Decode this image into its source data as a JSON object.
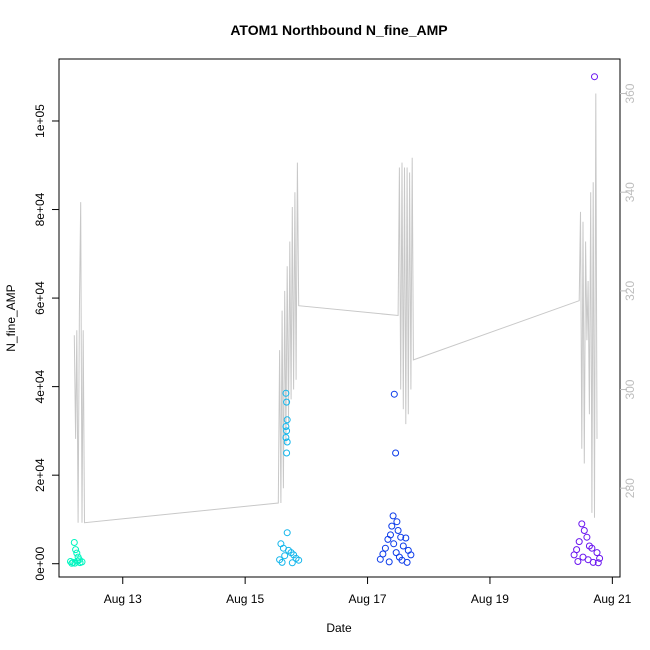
{
  "chart_data": {
    "type": "scatter",
    "title": "ATOM1 Northbound N_fine_AMP",
    "xlabel": "Date",
    "ylabel": "N_fine_AMP",
    "xlim": [
      "2023-08-11T23:00",
      "2023-08-21T03:00"
    ],
    "ylim": [
      -3000,
      114000
    ],
    "x_ticks": [
      {
        "value": "2023-08-13",
        "label": "Aug 13"
      },
      {
        "value": "2023-08-15",
        "label": "Aug 15"
      },
      {
        "value": "2023-08-17",
        "label": "Aug 17"
      },
      {
        "value": "2023-08-19",
        "label": "Aug 19"
      },
      {
        "value": "2023-08-21",
        "label": "Aug 21"
      }
    ],
    "y_ticks": [
      {
        "value": 0,
        "label": "0e+00"
      },
      {
        "value": 20000,
        "label": "2e+04"
      },
      {
        "value": 40000,
        "label": "4e+04"
      },
      {
        "value": 60000,
        "label": "6e+04"
      },
      {
        "value": 80000,
        "label": "8e+04"
      },
      {
        "value": 100000,
        "label": "1e+05"
      }
    ],
    "y2lim": [
      262,
      367
    ],
    "y2_ticks": [
      {
        "value": 280,
        "label": "280"
      },
      {
        "value": 300,
        "label": "300"
      },
      {
        "value": 320,
        "label": "320"
      },
      {
        "value": 340,
        "label": "340"
      },
      {
        "value": 360,
        "label": "360"
      }
    ],
    "colors": {
      "group1": "#00f5c0",
      "group2": "#13b6ec",
      "group3": "#0b3bea",
      "group4": "#6a14f0",
      "line": "#c8c8c8",
      "right_axis": "#bdbdbd"
    },
    "groups": [
      {
        "color_key": "group1",
        "points": [
          [
            "2023-08-12T05:00",
            4800
          ],
          [
            "2023-08-12T05:30",
            3200
          ],
          [
            "2023-08-12T06:00",
            2400
          ],
          [
            "2023-08-12T06:30",
            1500
          ],
          [
            "2023-08-12T07:00",
            900
          ],
          [
            "2023-08-12T04:30",
            300
          ],
          [
            "2023-08-12T05:15",
            150
          ],
          [
            "2023-08-12T06:15",
            600
          ],
          [
            "2023-08-12T07:15",
            250
          ],
          [
            "2023-08-12T03:30",
            500
          ],
          [
            "2023-08-12T04:00",
            100
          ],
          [
            "2023-08-12T08:00",
            400
          ]
        ]
      },
      {
        "color_key": "group2",
        "points": [
          [
            "2023-08-15T16:00",
            38500
          ],
          [
            "2023-08-15T16:15",
            36500
          ],
          [
            "2023-08-15T16:30",
            32500
          ],
          [
            "2023-08-15T16:00",
            31000
          ],
          [
            "2023-08-15T16:15",
            30000
          ],
          [
            "2023-08-15T16:00",
            28500
          ],
          [
            "2023-08-15T16:30",
            27500
          ],
          [
            "2023-08-15T16:15",
            25000
          ],
          [
            "2023-08-15T16:30",
            7000
          ],
          [
            "2023-08-15T14:00",
            4500
          ],
          [
            "2023-08-15T15:00",
            3500
          ],
          [
            "2023-08-15T17:00",
            3000
          ],
          [
            "2023-08-15T18:00",
            2500
          ],
          [
            "2023-08-15T15:30",
            1800
          ],
          [
            "2023-08-15T19:00",
            2000
          ],
          [
            "2023-08-15T20:00",
            1200
          ],
          [
            "2023-08-15T13:30",
            900
          ],
          [
            "2023-08-15T21:00",
            800
          ],
          [
            "2023-08-15T14:30",
            300
          ],
          [
            "2023-08-15T18:30",
            200
          ]
        ]
      },
      {
        "color_key": "group3",
        "points": [
          [
            "2023-08-17T10:30",
            38300
          ],
          [
            "2023-08-17T11:00",
            25000
          ],
          [
            "2023-08-17T10:00",
            10800
          ],
          [
            "2023-08-17T11:30",
            9500
          ],
          [
            "2023-08-17T09:30",
            8500
          ],
          [
            "2023-08-17T12:00",
            7500
          ],
          [
            "2023-08-17T09:00",
            6500
          ],
          [
            "2023-08-17T13:00",
            6000
          ],
          [
            "2023-08-17T08:00",
            5500
          ],
          [
            "2023-08-17T15:00",
            5800
          ],
          [
            "2023-08-17T10:15",
            4500
          ],
          [
            "2023-08-17T14:00",
            4000
          ],
          [
            "2023-08-17T07:00",
            3500
          ],
          [
            "2023-08-17T16:00",
            3000
          ],
          [
            "2023-08-17T11:15",
            2500
          ],
          [
            "2023-08-17T06:00",
            2200
          ],
          [
            "2023-08-17T17:00",
            2000
          ],
          [
            "2023-08-17T12:30",
            1500
          ],
          [
            "2023-08-17T05:00",
            1000
          ],
          [
            "2023-08-17T13:30",
            800
          ],
          [
            "2023-08-17T08:30",
            400
          ],
          [
            "2023-08-17T15:30",
            300
          ]
        ]
      },
      {
        "color_key": "group4",
        "points": [
          [
            "2023-08-20T17:00",
            110000
          ],
          [
            "2023-08-20T12:00",
            9000
          ],
          [
            "2023-08-20T13:00",
            7500
          ],
          [
            "2023-08-20T14:00",
            6000
          ],
          [
            "2023-08-20T11:00",
            5000
          ],
          [
            "2023-08-20T15:00",
            4000
          ],
          [
            "2023-08-20T10:00",
            3200
          ],
          [
            "2023-08-20T16:00",
            3500
          ],
          [
            "2023-08-20T18:00",
            2500
          ],
          [
            "2023-08-20T09:00",
            2000
          ],
          [
            "2023-08-20T12:30",
            1500
          ],
          [
            "2023-08-20T19:00",
            1200
          ],
          [
            "2023-08-20T14:30",
            900
          ],
          [
            "2023-08-20T10:30",
            500
          ],
          [
            "2023-08-20T16:30",
            300
          ],
          [
            "2023-08-20T18:30",
            200
          ]
        ]
      }
    ],
    "line_series": [
      [
        "2023-08-12T05:00",
        311
      ],
      [
        "2023-08-12T05:30",
        290
      ],
      [
        "2023-08-12T06:00",
        312
      ],
      [
        "2023-08-12T06:30",
        273
      ],
      [
        "2023-08-12T07:00",
        316
      ],
      [
        "2023-08-12T07:30",
        338
      ],
      [
        "2023-08-12T08:00",
        273
      ],
      [
        "2023-08-12T08:30",
        312
      ],
      [
        "2023-08-12T09:00",
        273
      ],
      [
        "2023-08-15T13:00",
        277
      ],
      [
        "2023-08-15T13:30",
        308
      ],
      [
        "2023-08-15T14:00",
        277
      ],
      [
        "2023-08-15T14:30",
        316
      ],
      [
        "2023-08-15T15:00",
        280
      ],
      [
        "2023-08-15T15:30",
        320
      ],
      [
        "2023-08-15T16:00",
        289
      ],
      [
        "2023-08-15T16:30",
        325
      ],
      [
        "2023-08-15T17:00",
        293
      ],
      [
        "2023-08-15T17:30",
        330
      ],
      [
        "2023-08-15T18:00",
        298
      ],
      [
        "2023-08-15T18:30",
        337
      ],
      [
        "2023-08-15T19:00",
        300
      ],
      [
        "2023-08-15T19:30",
        340
      ],
      [
        "2023-08-15T20:00",
        302
      ],
      [
        "2023-08-15T20:30",
        346
      ],
      [
        "2023-08-15T21:00",
        317
      ],
      [
        "2023-08-17T12:00",
        315
      ],
      [
        "2023-08-17T12:30",
        345
      ],
      [
        "2023-08-17T13:00",
        300
      ],
      [
        "2023-08-17T13:30",
        346
      ],
      [
        "2023-08-17T14:00",
        296
      ],
      [
        "2023-08-17T14:30",
        345
      ],
      [
        "2023-08-17T15:00",
        293
      ],
      [
        "2023-08-17T15:30",
        345
      ],
      [
        "2023-08-17T16:00",
        295
      ],
      [
        "2023-08-17T16:30",
        344
      ],
      [
        "2023-08-17T17:00",
        300
      ],
      [
        "2023-08-17T17:30",
        347
      ],
      [
        "2023-08-17T18:00",
        306
      ],
      [
        "2023-08-20T11:00",
        318
      ],
      [
        "2023-08-20T11:30",
        336
      ],
      [
        "2023-08-20T12:00",
        288
      ],
      [
        "2023-08-20T12:30",
        334
      ],
      [
        "2023-08-20T13:00",
        285
      ],
      [
        "2023-08-20T13:30",
        330
      ],
      [
        "2023-08-20T14:00",
        310
      ],
      [
        "2023-08-20T14:30",
        322
      ],
      [
        "2023-08-20T15:00",
        295
      ],
      [
        "2023-08-20T15:30",
        340
      ],
      [
        "2023-08-20T16:00",
        275
      ],
      [
        "2023-08-20T16:30",
        342
      ],
      [
        "2023-08-20T17:00",
        274
      ],
      [
        "2023-08-20T17:30",
        360
      ],
      [
        "2023-08-20T18:00",
        290
      ]
    ]
  }
}
